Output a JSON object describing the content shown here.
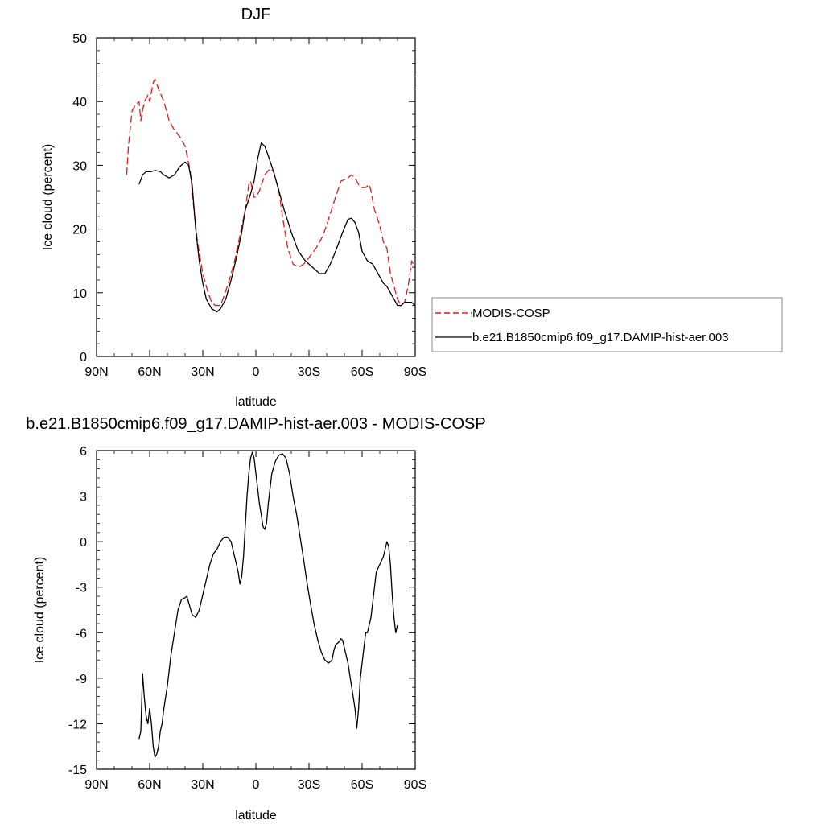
{
  "chart_data": [
    {
      "type": "line",
      "title": "DJF",
      "xlabel": "latitude",
      "ylabel": "Ice cloud (percent)",
      "xlim": [
        90,
        -90
      ],
      "ylim": [
        0,
        50
      ],
      "x_ticks": [
        90,
        60,
        30,
        0,
        -30,
        -60,
        -90
      ],
      "x_tick_labels": [
        "90N",
        "60N",
        "30N",
        "0",
        "30S",
        "60S",
        "90S"
      ],
      "y_ticks": [
        0,
        10,
        20,
        30,
        40,
        50
      ],
      "y_tick_labels": [
        "0",
        "10",
        "20",
        "30",
        "40",
        "50"
      ],
      "legend_position": "right",
      "series": [
        {
          "name": "MODIS-COSP",
          "color": "#e41a1c",
          "dash": "dashed",
          "points": [
            [
              73,
              28.5
            ],
            [
              72,
              33
            ],
            [
              70,
              38.5
            ],
            [
              68,
              39.5
            ],
            [
              66,
              40
            ],
            [
              65,
              37
            ],
            [
              63,
              40
            ],
            [
              61,
              41
            ],
            [
              60,
              40
            ],
            [
              58,
              43
            ],
            [
              57,
              43.5
            ],
            [
              55,
              42
            ],
            [
              52,
              40
            ],
            [
              49,
              37
            ],
            [
              46,
              35.5
            ],
            [
              43,
              34.5
            ],
            [
              40,
              33
            ],
            [
              37,
              29
            ],
            [
              35,
              23
            ],
            [
              33,
              18
            ],
            [
              30,
              13
            ],
            [
              27,
              10
            ],
            [
              25,
              8.5
            ],
            [
              23,
              8
            ],
            [
              20,
              8
            ],
            [
              18,
              9.5
            ],
            [
              15,
              12
            ],
            [
              12,
              15
            ],
            [
              9,
              19
            ],
            [
              6,
              23
            ],
            [
              4,
              27
            ],
            [
              3,
              27.5
            ],
            [
              1,
              25
            ],
            [
              0,
              25
            ],
            [
              -2,
              26
            ],
            [
              -5,
              28.5
            ],
            [
              -8,
              29.5
            ],
            [
              -10,
              29
            ],
            [
              -13,
              26
            ],
            [
              -15,
              22
            ],
            [
              -18,
              17
            ],
            [
              -21,
              14.5
            ],
            [
              -24,
              14
            ],
            [
              -27,
              14.5
            ],
            [
              -30,
              15.5
            ],
            [
              -34,
              17
            ],
            [
              -38,
              19
            ],
            [
              -41,
              21.5
            ],
            [
              -45,
              25
            ],
            [
              -48,
              27.5
            ],
            [
              -52,
              28
            ],
            [
              -54,
              28.5
            ],
            [
              -56,
              28
            ],
            [
              -58,
              27
            ],
            [
              -60,
              26.5
            ],
            [
              -62,
              26.5
            ],
            [
              -64,
              27
            ],
            [
              -65,
              26
            ],
            [
              -67,
              23
            ],
            [
              -70,
              20.5
            ],
            [
              -72,
              18
            ],
            [
              -74,
              17
            ],
            [
              -76,
              13
            ],
            [
              -78,
              11
            ],
            [
              -80,
              9
            ],
            [
              -82,
              8
            ],
            [
              -84,
              8.5
            ],
            [
              -86,
              11
            ],
            [
              -88,
              15
            ],
            [
              -90,
              14
            ]
          ]
        },
        {
          "name": "b.e21.B1850cmip6.f09_g17.DAMIP-hist-aer.003",
          "color": "#000000",
          "dash": "solid",
          "points": [
            [
              66,
              27
            ],
            [
              64,
              28.5
            ],
            [
              62,
              29
            ],
            [
              59,
              29
            ],
            [
              57,
              29.2
            ],
            [
              54,
              29
            ],
            [
              52,
              28.5
            ],
            [
              49,
              28
            ],
            [
              46,
              28.5
            ],
            [
              43,
              29.8
            ],
            [
              40,
              30.5
            ],
            [
              38,
              30
            ],
            [
              36,
              27
            ],
            [
              34,
              20
            ],
            [
              32,
              15
            ],
            [
              30,
              11.5
            ],
            [
              28,
              9
            ],
            [
              25,
              7.5
            ],
            [
              22,
              7
            ],
            [
              20,
              7.5
            ],
            [
              17,
              9
            ],
            [
              14,
              12
            ],
            [
              11,
              15.5
            ],
            [
              8,
              19.5
            ],
            [
              6,
              23
            ],
            [
              3,
              25.5
            ],
            [
              1,
              27.5
            ],
            [
              -1,
              31
            ],
            [
              -3,
              33.5
            ],
            [
              -5,
              33
            ],
            [
              -7,
              31.5
            ],
            [
              -10,
              29
            ],
            [
              -13,
              26
            ],
            [
              -16,
              23
            ],
            [
              -20,
              19.5
            ],
            [
              -24,
              16.5
            ],
            [
              -28,
              15
            ],
            [
              -32,
              14
            ],
            [
              -36,
              13
            ],
            [
              -39,
              13
            ],
            [
              -42,
              14.5
            ],
            [
              -45,
              16.5
            ],
            [
              -49,
              19.5
            ],
            [
              -52,
              21.5
            ],
            [
              -54,
              21.7
            ],
            [
              -56,
              21
            ],
            [
              -58,
              19.5
            ],
            [
              -60,
              16.5
            ],
            [
              -63,
              15
            ],
            [
              -66,
              14.5
            ],
            [
              -68,
              13.5
            ],
            [
              -70,
              12.5
            ],
            [
              -72,
              11.5
            ],
            [
              -74,
              11
            ],
            [
              -76,
              10
            ],
            [
              -78,
              9
            ],
            [
              -80,
              8
            ],
            [
              -82,
              8
            ],
            [
              -84,
              8.5
            ],
            [
              -86,
              8.5
            ],
            [
              -88,
              8.5
            ],
            [
              -90,
              8
            ]
          ]
        }
      ]
    },
    {
      "type": "line",
      "title": "b.e21.B1850cmip6.f09_g17.DAMIP-hist-aer.003 - MODIS-COSP",
      "xlabel": "latitude",
      "ylabel": "Ice cloud (percent)",
      "xlim": [
        90,
        -90
      ],
      "ylim": [
        -15,
        6
      ],
      "x_ticks": [
        90,
        60,
        30,
        0,
        -30,
        -60,
        -90
      ],
      "x_tick_labels": [
        "90N",
        "60N",
        "30N",
        "0",
        "30S",
        "60S",
        "90S"
      ],
      "y_ticks": [
        6,
        3,
        0,
        -3,
        -6,
        -9,
        -12,
        -15
      ],
      "y_tick_labels": [
        "6",
        "3",
        "0",
        "-3",
        "-6",
        "-9",
        "-12",
        "-15"
      ],
      "series": [
        {
          "color": "#000000",
          "dash": "solid",
          "points": [
            [
              66,
              -13
            ],
            [
              65,
              -12.5
            ],
            [
              64,
              -8.7
            ],
            [
              63,
              -10.3
            ],
            [
              62,
              -11.5
            ],
            [
              61,
              -12
            ],
            [
              60,
              -11
            ],
            [
              59,
              -12
            ],
            [
              58,
              -13.5
            ],
            [
              57,
              -14.2
            ],
            [
              56,
              -14
            ],
            [
              55,
              -13.5
            ],
            [
              54,
              -12.5
            ],
            [
              53,
              -12
            ],
            [
              52,
              -11
            ],
            [
              50,
              -9.5
            ],
            [
              48,
              -7.5
            ],
            [
              46,
              -6
            ],
            [
              44,
              -4.5
            ],
            [
              42,
              -3.8
            ],
            [
              40,
              -3.7
            ],
            [
              39,
              -3.6
            ],
            [
              38,
              -4
            ],
            [
              36,
              -4.8
            ],
            [
              34,
              -5
            ],
            [
              32,
              -4.5
            ],
            [
              30,
              -3.5
            ],
            [
              28,
              -2.5
            ],
            [
              26,
              -1.5
            ],
            [
              24,
              -0.8
            ],
            [
              22,
              -0.5
            ],
            [
              20,
              0
            ],
            [
              18,
              0.3
            ],
            [
              16,
              0.3
            ],
            [
              14,
              0
            ],
            [
              12,
              -1
            ],
            [
              10,
              -2
            ],
            [
              9,
              -2.8
            ],
            [
              8,
              -2.3
            ],
            [
              7,
              -1
            ],
            [
              6,
              1
            ],
            [
              5,
              3
            ],
            [
              4,
              4.5
            ],
            [
              3,
              5.5
            ],
            [
              2,
              5.9
            ],
            [
              1,
              5.5
            ],
            [
              0,
              4.5
            ],
            [
              -1,
              3.5
            ],
            [
              -2,
              2.5
            ],
            [
              -3,
              1.8
            ],
            [
              -4,
              1
            ],
            [
              -5,
              0.8
            ],
            [
              -6,
              1.2
            ],
            [
              -7,
              2.5
            ],
            [
              -9,
              4.5
            ],
            [
              -11,
              5.3
            ],
            [
              -13,
              5.7
            ],
            [
              -15,
              5.8
            ],
            [
              -17,
              5.5
            ],
            [
              -19,
              4.5
            ],
            [
              -21,
              3
            ],
            [
              -23,
              1.8
            ],
            [
              -25,
              0.3
            ],
            [
              -27,
              -1.2
            ],
            [
              -29,
              -2.8
            ],
            [
              -31,
              -4.2
            ],
            [
              -33,
              -5.5
            ],
            [
              -35,
              -6.5
            ],
            [
              -37,
              -7.3
            ],
            [
              -39,
              -7.8
            ],
            [
              -41,
              -8
            ],
            [
              -43,
              -7.8
            ],
            [
              -44,
              -7.2
            ],
            [
              -45,
              -6.8
            ],
            [
              -46,
              -6.7
            ],
            [
              -47,
              -6.6
            ],
            [
              -48,
              -6.4
            ],
            [
              -49,
              -6.5
            ],
            [
              -50,
              -7
            ],
            [
              -52,
              -8
            ],
            [
              -54,
              -9.5
            ],
            [
              -56,
              -11
            ],
            [
              -57,
              -12.3
            ],
            [
              -58,
              -11
            ],
            [
              -59,
              -9
            ],
            [
              -60,
              -8
            ],
            [
              -61,
              -7
            ],
            [
              -62,
              -6
            ],
            [
              -63,
              -6
            ],
            [
              -64,
              -5.5
            ],
            [
              -65,
              -5
            ],
            [
              -66,
              -4
            ],
            [
              -67,
              -3
            ],
            [
              -68,
              -2
            ],
            [
              -70,
              -1.5
            ],
            [
              -72,
              -1
            ],
            [
              -73,
              -0.5
            ],
            [
              -74,
              0
            ],
            [
              -75,
              -0.3
            ],
            [
              -76,
              -1.5
            ],
            [
              -77,
              -3.5
            ],
            [
              -78,
              -5
            ],
            [
              -79,
              -6
            ],
            [
              -80,
              -5.5
            ]
          ]
        }
      ]
    }
  ]
}
